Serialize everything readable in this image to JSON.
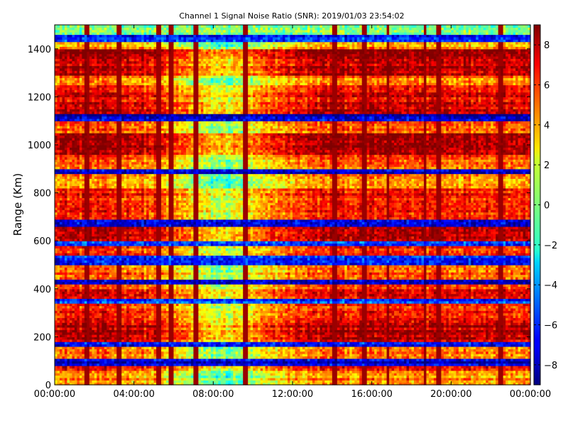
{
  "chart_data": {
    "type": "heatmap",
    "title": "Channel 1 Signal Noise Ratio (SNR): 2019/01/03 23:54:02",
    "xlabel": "",
    "ylabel": "Range (Km)",
    "x_ticks": [
      "00:00:00",
      "04:00:00",
      "08:00:00",
      "12:00:00",
      "16:00:00",
      "20:00:00",
      "00:00:00"
    ],
    "x_range_hours": [
      0,
      24
    ],
    "y_ticks": [
      0,
      200,
      400,
      600,
      800,
      1000,
      1200,
      1400
    ],
    "ylim": [
      0,
      1500
    ],
    "colorbar": {
      "colormap": "jet",
      "range": [
        -9,
        9
      ],
      "ticks": [
        -8,
        -6,
        -4,
        -2,
        0,
        2,
        4,
        6,
        8
      ]
    },
    "band_levels_bottom_to_top": [
      {
        "from": 0,
        "to": 60,
        "snr": 4.5
      },
      {
        "from": 60,
        "to": 85,
        "snr": 6.5
      },
      {
        "from": 85,
        "to": 110,
        "snr": -7.5
      },
      {
        "from": 110,
        "to": 160,
        "snr": 5.5
      },
      {
        "from": 160,
        "to": 180,
        "snr": -7.0
      },
      {
        "from": 180,
        "to": 280,
        "snr": 8.0
      },
      {
        "from": 280,
        "to": 340,
        "snr": 6.0
      },
      {
        "from": 340,
        "to": 360,
        "snr": -6.0
      },
      {
        "from": 360,
        "to": 420,
        "snr": 6.5
      },
      {
        "from": 420,
        "to": 440,
        "snr": -7.5
      },
      {
        "from": 440,
        "to": 500,
        "snr": 5.5
      },
      {
        "from": 500,
        "to": 540,
        "snr": -6.5
      },
      {
        "from": 540,
        "to": 580,
        "snr": 6.0
      },
      {
        "from": 580,
        "to": 600,
        "snr": -6.0
      },
      {
        "from": 600,
        "to": 660,
        "snr": 8.5
      },
      {
        "from": 660,
        "to": 690,
        "snr": -8.0
      },
      {
        "from": 690,
        "to": 820,
        "snr": 6.5
      },
      {
        "from": 820,
        "to": 880,
        "snr": 4.5
      },
      {
        "from": 880,
        "to": 900,
        "snr": -8.0
      },
      {
        "from": 900,
        "to": 960,
        "snr": 5.5
      },
      {
        "from": 960,
        "to": 1050,
        "snr": 8.5
      },
      {
        "from": 1050,
        "to": 1100,
        "snr": 5.0
      },
      {
        "from": 1100,
        "to": 1130,
        "snr": -8.0
      },
      {
        "from": 1130,
        "to": 1250,
        "snr": 7.5
      },
      {
        "from": 1250,
        "to": 1290,
        "snr": 5.0
      },
      {
        "from": 1290,
        "to": 1340,
        "snr": 8.0
      },
      {
        "from": 1340,
        "to": 1400,
        "snr": 8.5
      },
      {
        "from": 1400,
        "to": 1430,
        "snr": 4.0
      },
      {
        "from": 1430,
        "to": 1460,
        "snr": -6.5
      },
      {
        "from": 1460,
        "to": 1500,
        "snr": 0.5
      }
    ],
    "daytime_dip": {
      "center_hour": 8.5,
      "width_hours": 2.8,
      "depth_snr": 5.0
    },
    "vertical_streak_hours": [
      1.6,
      3.3,
      5.3,
      5.9,
      7.1,
      9.6,
      14.1,
      15.6,
      16.8,
      18.7,
      19.4,
      22.5
    ]
  }
}
